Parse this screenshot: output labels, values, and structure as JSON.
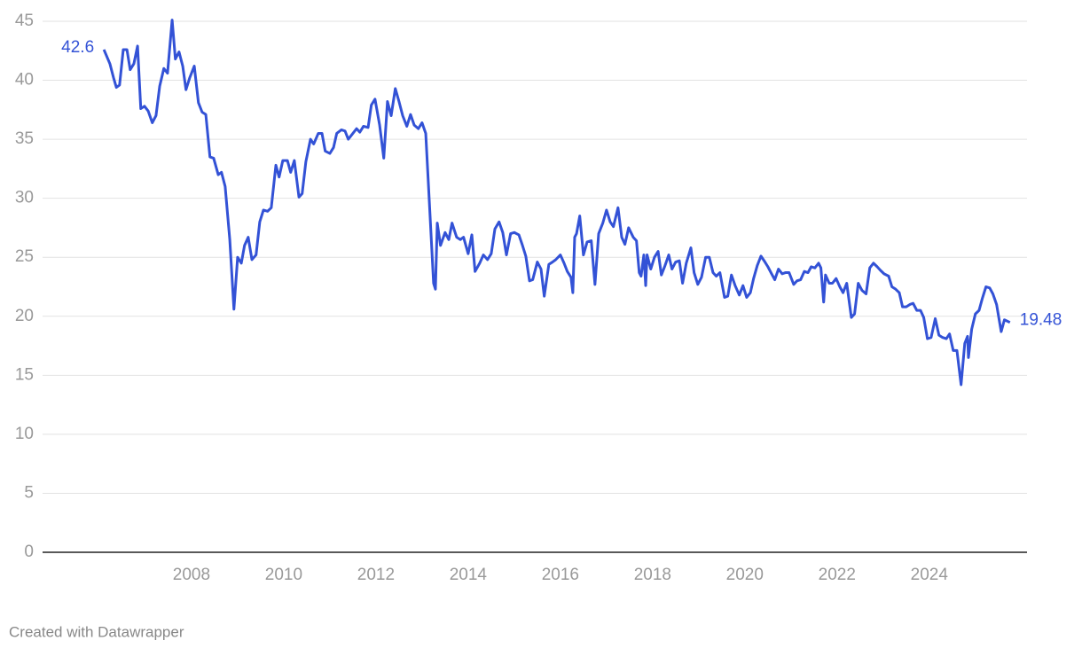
{
  "chart_data": {
    "type": "line",
    "credit": "Created with Datawrapper",
    "color": "#3352d6",
    "grid": true,
    "xlim": [
      2004.77,
      2026.12
    ],
    "xticks": [
      2008,
      2010,
      2012,
      2014,
      2016,
      2018,
      2020,
      2022,
      2024
    ],
    "ylim": [
      0,
      45
    ],
    "yticks": [
      0,
      5,
      10,
      15,
      20,
      25,
      30,
      35,
      40,
      45
    ],
    "x": [
      2006.1,
      2006.23,
      2006.31,
      2006.37,
      2006.44,
      2006.52,
      2006.6,
      2006.67,
      2006.75,
      2006.83,
      2006.9,
      2006.98,
      2007.06,
      2007.15,
      2007.23,
      2007.31,
      2007.4,
      2007.48,
      2007.58,
      2007.65,
      2007.73,
      2007.81,
      2007.88,
      2007.96,
      2008.06,
      2008.15,
      2008.23,
      2008.31,
      2008.4,
      2008.48,
      2008.58,
      2008.65,
      2008.73,
      2008.83,
      2008.92,
      2009.0,
      2009.08,
      2009.15,
      2009.23,
      2009.31,
      2009.4,
      2009.48,
      2009.56,
      2009.65,
      2009.73,
      2009.83,
      2009.9,
      2009.98,
      2010.08,
      2010.15,
      2010.23,
      2010.33,
      2010.4,
      2010.48,
      2010.58,
      2010.65,
      2010.75,
      2010.83,
      2010.9,
      2011.0,
      2011.08,
      2011.15,
      2011.25,
      2011.33,
      2011.4,
      2011.5,
      2011.58,
      2011.65,
      2011.73,
      2011.83,
      2011.9,
      2011.98,
      2012.08,
      2012.17,
      2012.25,
      2012.33,
      2012.42,
      2012.5,
      2012.58,
      2012.67,
      2012.75,
      2012.83,
      2012.92,
      2013.0,
      2013.08,
      2013.17,
      2013.25,
      2013.29,
      2013.33,
      2013.4,
      2013.5,
      2013.58,
      2013.65,
      2013.75,
      2013.83,
      2013.9,
      2014.0,
      2014.08,
      2014.15,
      2014.25,
      2014.33,
      2014.42,
      2014.5,
      2014.58,
      2014.67,
      2014.75,
      2014.83,
      2014.92,
      2015.0,
      2015.1,
      2015.17,
      2015.25,
      2015.33,
      2015.4,
      2015.5,
      2015.58,
      2015.65,
      2015.75,
      2015.83,
      2015.9,
      2016.0,
      2016.08,
      2016.15,
      2016.23,
      2016.27,
      2016.31,
      2016.35,
      2016.42,
      2016.5,
      2016.58,
      2016.67,
      2016.75,
      2016.83,
      2016.92,
      2017.0,
      2017.08,
      2017.15,
      2017.25,
      2017.33,
      2017.4,
      2017.48,
      2017.58,
      2017.65,
      2017.71,
      2017.75,
      2017.81,
      2017.85,
      2017.88,
      2017.96,
      2018.04,
      2018.12,
      2018.19,
      2018.27,
      2018.35,
      2018.42,
      2018.5,
      2018.58,
      2018.65,
      2018.73,
      2018.83,
      2018.9,
      2018.98,
      2019.06,
      2019.15,
      2019.23,
      2019.31,
      2019.38,
      2019.46,
      2019.56,
      2019.63,
      2019.71,
      2019.79,
      2019.88,
      2019.96,
      2020.04,
      2020.12,
      2020.19,
      2020.27,
      2020.35,
      2020.42,
      2020.5,
      2020.58,
      2020.65,
      2020.73,
      2020.81,
      2020.88,
      2020.96,
      2021.06,
      2021.13,
      2021.21,
      2021.29,
      2021.37,
      2021.44,
      2021.52,
      2021.6,
      2021.65,
      2021.71,
      2021.75,
      2021.83,
      2021.9,
      2021.98,
      2022.06,
      2022.13,
      2022.21,
      2022.31,
      2022.38,
      2022.46,
      2022.54,
      2022.63,
      2022.71,
      2022.79,
      2022.87,
      2022.94,
      2023.02,
      2023.12,
      2023.19,
      2023.27,
      2023.35,
      2023.42,
      2023.5,
      2023.58,
      2023.65,
      2023.73,
      2023.81,
      2023.88,
      2023.96,
      2024.04,
      2024.13,
      2024.21,
      2024.29,
      2024.37,
      2024.44,
      2024.52,
      2024.6,
      2024.69,
      2024.77,
      2024.83,
      2024.85,
      2024.92,
      2025.0,
      2025.08,
      2025.15,
      2025.23,
      2025.31,
      2025.38,
      2025.46,
      2025.56,
      2025.63,
      2025.75
    ],
    "values": [
      42.6,
      41.4,
      40.2,
      39.4,
      39.6,
      42.6,
      42.6,
      40.9,
      41.4,
      42.9,
      37.6,
      37.8,
      37.4,
      36.4,
      37.0,
      39.5,
      41.0,
      40.6,
      45.1,
      41.8,
      42.4,
      41.2,
      39.2,
      40.2,
      41.2,
      38.1,
      37.3,
      37.1,
      33.5,
      33.4,
      32.0,
      32.2,
      31.0,
      26.5,
      20.6,
      25.0,
      24.5,
      26.0,
      26.7,
      24.8,
      25.2,
      28.0,
      29.0,
      28.9,
      29.2,
      32.8,
      31.8,
      33.2,
      33.2,
      32.2,
      33.2,
      30.1,
      30.4,
      33.1,
      35.0,
      34.6,
      35.5,
      35.5,
      34.0,
      33.8,
      34.3,
      35.5,
      35.8,
      35.7,
      35.0,
      35.5,
      35.9,
      35.6,
      36.1,
      36.0,
      37.9,
      38.4,
      36.2,
      33.4,
      38.2,
      37.0,
      39.3,
      38.2,
      37.0,
      36.1,
      37.1,
      36.2,
      35.9,
      36.4,
      35.5,
      28.8,
      22.8,
      22.3,
      27.9,
      26.0,
      27.1,
      26.5,
      27.9,
      26.7,
      26.5,
      26.7,
      25.3,
      26.9,
      23.8,
      24.5,
      25.2,
      24.8,
      25.3,
      27.4,
      28.0,
      27.1,
      25.2,
      27.0,
      27.1,
      26.9,
      26.1,
      25.1,
      23.0,
      23.1,
      24.6,
      24.0,
      21.7,
      24.4,
      24.6,
      24.8,
      25.2,
      24.5,
      23.8,
      23.3,
      22.0,
      26.7,
      27.0,
      28.5,
      25.2,
      26.3,
      26.4,
      22.7,
      27.0,
      27.9,
      29.0,
      28.0,
      27.6,
      29.2,
      26.7,
      26.1,
      27.5,
      26.7,
      26.4,
      23.7,
      23.4,
      25.2,
      22.6,
      25.2,
      24.0,
      25.0,
      25.5,
      23.5,
      24.3,
      25.2,
      24.0,
      24.6,
      24.7,
      22.8,
      24.5,
      25.8,
      23.7,
      22.7,
      23.3,
      25.0,
      25.0,
      23.7,
      23.4,
      23.7,
      21.6,
      21.7,
      23.5,
      22.6,
      21.8,
      22.6,
      21.6,
      22.0,
      23.2,
      24.3,
      25.1,
      24.7,
      24.2,
      23.6,
      23.1,
      24.0,
      23.6,
      23.7,
      23.7,
      22.7,
      23.0,
      23.1,
      23.8,
      23.7,
      24.2,
      24.1,
      24.5,
      24.1,
      21.2,
      23.5,
      22.8,
      22.8,
      23.2,
      22.5,
      22.0,
      22.8,
      19.9,
      20.2,
      22.8,
      22.2,
      21.9,
      24.1,
      24.5,
      24.2,
      23.9,
      23.6,
      23.4,
      22.5,
      22.3,
      22.0,
      20.8,
      20.8,
      21.0,
      21.1,
      20.5,
      20.5,
      19.9,
      18.1,
      18.2,
      19.8,
      18.4,
      18.2,
      18.1,
      18.5,
      17.1,
      17.1,
      14.2,
      17.7,
      18.3,
      16.5,
      18.9,
      20.2,
      20.5,
      21.5,
      22.5,
      22.4,
      21.9,
      21.0,
      18.7,
      19.7,
      19.48
    ]
  }
}
